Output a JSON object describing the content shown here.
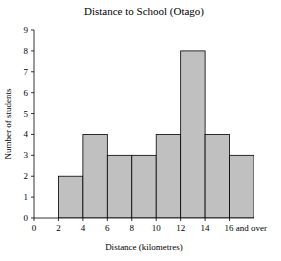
{
  "chart_data": {
    "type": "histogram",
    "title": "Distance to School (Otago)",
    "x_label": "Distance (kilometres)",
    "y_label": "Number of students",
    "bins": [
      0,
      2,
      4,
      6,
      8,
      10,
      12,
      14,
      16,
      18
    ],
    "values": [
      0,
      2,
      4,
      3,
      3,
      4,
      8,
      4,
      3
    ],
    "color": "#c0c0c0",
    "xlim": [
      0,
      18
    ],
    "xticks": [
      0,
      2,
      4,
      6,
      8,
      10,
      12,
      14,
      {
        "value": 16,
        "label": "16 and over"
      }
    ],
    "ylim": [
      0,
      9
    ],
    "yticks": [
      0,
      1,
      2,
      3,
      4,
      5,
      6,
      7,
      8,
      9
    ],
    "grid": false
  }
}
